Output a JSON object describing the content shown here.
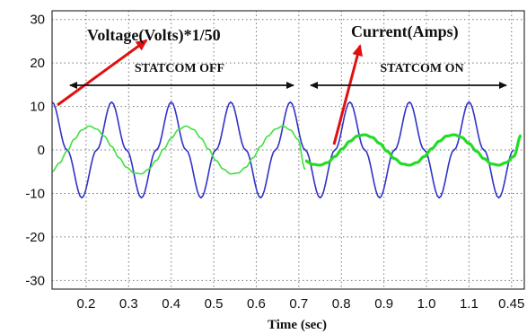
{
  "chart_data": {
    "type": "line",
    "title": "",
    "xlabel": "Time (sec)",
    "ylabel": "",
    "ylim": [
      -32,
      32
    ],
    "x_tick_labels": [
      "0.2",
      "0.3",
      "0.4",
      "0.5",
      "0.6",
      "0.7",
      "0.8",
      "0.9",
      "1.0",
      "1.1",
      "0.45"
    ],
    "y_ticks": [
      30,
      20,
      10,
      0,
      -10,
      -20,
      -30
    ],
    "y_tick_labels": [
      "30",
      "20",
      "10",
      "0",
      "-10",
      "-20",
      "-30"
    ],
    "grid": true,
    "series": [
      {
        "label": "Voltage(Volts)*1/50",
        "color": "#3232c8",
        "amplitude": 11,
        "period_s": 0.14,
        "x": [
          0.12,
          0.155,
          0.19,
          0.225,
          0.26,
          0.295,
          0.33,
          0.365,
          0.4,
          0.435,
          0.47,
          0.505,
          0.54,
          0.575,
          0.61,
          0.645,
          0.68,
          0.715,
          0.75,
          0.785,
          0.82,
          0.855,
          0.89,
          0.925,
          0.96,
          0.995,
          1.03,
          1.065,
          1.1,
          1.135,
          1.17,
          1.205
        ],
        "values": [
          11,
          0,
          -11,
          0,
          11,
          0,
          -11,
          0,
          11,
          0,
          -11,
          0,
          11,
          0,
          -11,
          0,
          11,
          0,
          -11,
          0,
          11,
          0,
          -11,
          0,
          11,
          0,
          -11,
          0,
          11,
          0,
          -11,
          0
        ]
      },
      {
        "label": "Current(Amps)",
        "condition": "STATCOM OFF",
        "color": "#40e040",
        "amplitude": 5.5,
        "x": [
          0.12,
          0.1375,
          0.155,
          0.1725,
          0.19,
          0.2075,
          0.225,
          0.2425,
          0.26,
          0.2775,
          0.295,
          0.3125,
          0.33,
          0.3475,
          0.365,
          0.3825,
          0.4,
          0.4175,
          0.435,
          0.4525,
          0.47,
          0.4875,
          0.505,
          0.5225,
          0.54,
          0.5575,
          0.575,
          0.5925,
          0.61,
          0.6275,
          0.645,
          0.6625,
          0.68,
          0.6975,
          0.715
        ],
        "values": [
          -5.0,
          -3.0,
          -0.3,
          2.5,
          4.6,
          5.5,
          4.8,
          3.2,
          0.8,
          -1.8,
          -4.0,
          -5.3,
          -5.5,
          -4.4,
          -2.4,
          0.2,
          2.7,
          4.7,
          5.5,
          4.7,
          2.7,
          0.2,
          -2.4,
          -4.4,
          -5.5,
          -5.3,
          -4.0,
          -1.8,
          0.8,
          3.2,
          4.8,
          5.5,
          4.6,
          2.5,
          -4.5
        ]
      },
      {
        "label": "Current(Amps)",
        "condition": "STATCOM ON",
        "color": "#22dd22",
        "amplitude": 3.5,
        "x": [
          0.715,
          0.7325,
          0.75,
          0.7675,
          0.785,
          0.8025,
          0.82,
          0.8375,
          0.855,
          0.8725,
          0.89,
          0.9075,
          0.925,
          0.9425,
          0.96,
          0.9775,
          0.995,
          1.0125,
          1.03,
          1.0475,
          1.065,
          1.0825,
          1.1,
          1.1175,
          1.135,
          1.1525,
          1.17,
          1.1875,
          1.205,
          1.2225
        ],
        "values": [
          -2.5,
          -3.3,
          -3.5,
          -2.9,
          -1.5,
          0.3,
          2.0,
          3.2,
          3.5,
          2.9,
          1.5,
          -0.3,
          -2.0,
          -3.2,
          -3.5,
          -2.9,
          -1.5,
          0.3,
          2.0,
          3.2,
          3.5,
          2.9,
          1.5,
          -0.3,
          -2.0,
          -3.2,
          -3.5,
          -2.9,
          -1.5,
          3.4
        ]
      }
    ],
    "annotations": {
      "voltage_label": "Voltage(Volts)*1/50",
      "current_label": "Current(Amps)",
      "statcom_off": "STATCOM OFF",
      "statcom_on": "STATCOM ON"
    }
  }
}
